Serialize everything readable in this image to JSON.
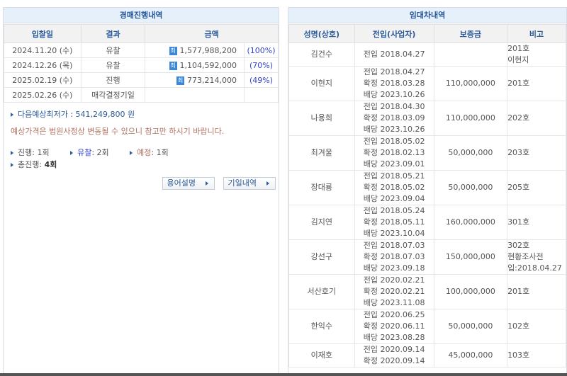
{
  "auction": {
    "title": "경매진행내역",
    "headers": [
      "입찰일",
      "결과",
      "금액"
    ],
    "badge": "최",
    "rows": [
      {
        "date": "2024.11.20 (수)",
        "result": "유찰",
        "amount": "1,577,988,200",
        "pct": "(100%)"
      },
      {
        "date": "2024.12.26 (목)",
        "result": "유찰",
        "amount": "1,104,592,000",
        "pct": "(70%)"
      },
      {
        "date": "2025.02.19 (수)",
        "result": "진행",
        "amount": "773,214,000",
        "pct": "(49%)"
      },
      {
        "date": "2025.02.26 (수)",
        "result": "매각결정기일",
        "amount": "",
        "pct": ""
      }
    ],
    "next_price": "다음예상최저가 : 541,249,800 원",
    "notice": "예상가격은 법원사정상 변동될 수 있으니 참고만 하시기 바랍니다.",
    "stats": {
      "progress_label": "진행",
      "progress_value": ": 1회",
      "fail_label": "유찰",
      "fail_value": ": 2회",
      "planned_label": "예정",
      "planned_value": ": 1회",
      "total_label": "총진행:",
      "total_value": "4회"
    },
    "buttons": {
      "glossary": "용어설명",
      "schedule": "기일내역"
    }
  },
  "tenants": {
    "title": "임대차내역",
    "headers": [
      "성명(상호)",
      "전입(사업자)",
      "보증금",
      "비고"
    ],
    "rows": [
      {
        "name": "김건수",
        "dates": [
          "전입 2018.04.27"
        ],
        "deposit": "",
        "note": [
          "201호",
          "이현지"
        ]
      },
      {
        "name": "이현지",
        "dates": [
          "전입 2018.04.27",
          "확정 2018.03.28",
          "배당 2023.10.26"
        ],
        "deposit": "110,000,000",
        "note": [
          "201호"
        ]
      },
      {
        "name": "나용희",
        "dates": [
          "전입 2018.04.30",
          "확정 2018.03.09",
          "배당 2023.10.26"
        ],
        "deposit": "110,000,000",
        "note": [
          "202호"
        ]
      },
      {
        "name": "최겨울",
        "dates": [
          "전입 2018.05.02",
          "확정 2018.02.13",
          "배당 2023.09.01"
        ],
        "deposit": "50,000,000",
        "note": [
          "203호"
        ]
      },
      {
        "name": "장대룡",
        "dates": [
          "전입 2018.05.21",
          "확정 2018.05.02",
          "배당 2023.09.04"
        ],
        "deposit": "50,000,000",
        "note": [
          "205호"
        ]
      },
      {
        "name": "김지연",
        "dates": [
          "전입 2018.05.24",
          "확정 2018.05.11",
          "배당 2023.10.04"
        ],
        "deposit": "160,000,000",
        "note": [
          "301호"
        ]
      },
      {
        "name": "강선구",
        "dates": [
          "전입 2018.07.03",
          "확정 2018.07.03",
          "배당 2023.09.18"
        ],
        "deposit": "150,000,000",
        "note": [
          "302호",
          "현황조사전",
          "입:2018.04.27"
        ]
      },
      {
        "name": "서산호기",
        "dates": [
          "전입 2020.02.21",
          "확정 2020.02.21",
          "배당 2023.11.08"
        ],
        "deposit": "100,000,000",
        "note": [
          "201호"
        ]
      },
      {
        "name": "한익수",
        "dates": [
          "전입 2020.06.25",
          "확정 2020.06.11",
          "배당 2023.08.28"
        ],
        "deposit": "50,000,000",
        "note": [
          "102호"
        ]
      },
      {
        "name": "이재호",
        "dates": [
          "전입 2020.09.14",
          "확정 2020.09.14"
        ],
        "deposit": "45,000,000",
        "note": [
          "103호"
        ]
      }
    ]
  },
  "colors": {
    "header_bg": "#e6f0fb",
    "header_text": "#2b5a9a",
    "badge": "#3b87d8",
    "pct": "#3344cc",
    "notice": "#b07060"
  }
}
